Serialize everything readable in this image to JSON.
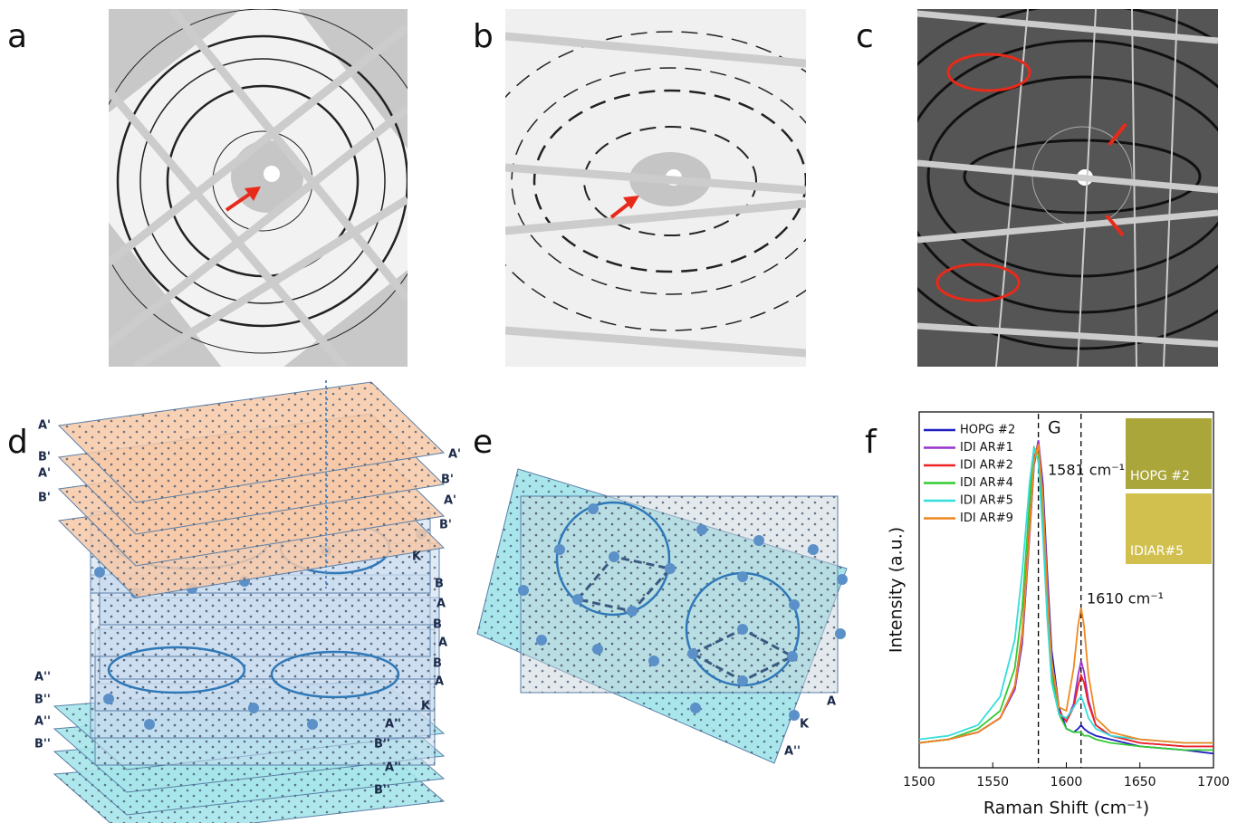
{
  "panel_labels": [
    "a",
    "b",
    "c",
    "d",
    "e",
    "f"
  ],
  "panel_d": {
    "left_labels": [
      "A'",
      "B'",
      "A'",
      "B'",
      "A''",
      "B''",
      "A''",
      "B''"
    ],
    "right_labels": [
      "A'",
      "B'",
      "A'",
      "B'",
      "K",
      "B",
      "A",
      "B",
      "A",
      "B",
      "A",
      "K",
      "A''",
      "B''",
      "A''",
      "B''"
    ]
  },
  "panel_e": {
    "labels": [
      "A",
      "K",
      "A''"
    ]
  },
  "chart_data": {
    "type": "line",
    "xlabel": "Raman Shift (cm⁻¹)",
    "ylabel": "Intensity (a.u.)",
    "xlim": [
      1500,
      1700
    ],
    "xticks": [
      1500,
      1550,
      1600,
      1650,
      1700
    ],
    "ylim": [
      0,
      100
    ],
    "x": [
      1500,
      1520,
      1540,
      1555,
      1565,
      1570,
      1575,
      1578,
      1581,
      1584,
      1587,
      1590,
      1595,
      1600,
      1605,
      1608,
      1610,
      1612,
      1615,
      1620,
      1630,
      1650,
      1680,
      1700
    ],
    "series": [
      {
        "name": "HOPG #2",
        "color": "#2020c0",
        "values": [
          7,
          8,
          10,
          14,
          22,
          35,
          65,
          85,
          92,
          80,
          55,
          33,
          17,
          11,
          10,
          11,
          12,
          11,
          10,
          9,
          8,
          6,
          5,
          4
        ]
      },
      {
        "name": "IDI AR#1",
        "color": "#9933cc",
        "values": [
          7,
          8,
          10,
          14,
          22,
          36,
          66,
          86,
          92,
          78,
          52,
          30,
          16,
          13,
          18,
          26,
          30,
          27,
          19,
          12,
          9,
          7,
          6,
          6
        ]
      },
      {
        "name": "IDI AR#2",
        "color": "#ee2222",
        "values": [
          7,
          8,
          10,
          14,
          23,
          38,
          68,
          87,
          91,
          76,
          50,
          29,
          16,
          13,
          17,
          23,
          26,
          24,
          18,
          12,
          9,
          7,
          6,
          6
        ]
      },
      {
        "name": "IDI AR#4",
        "color": "#33cc33",
        "values": [
          7,
          8,
          11,
          16,
          28,
          45,
          75,
          90,
          88,
          70,
          45,
          26,
          15,
          11,
          10,
          10,
          10,
          9,
          9,
          8,
          7,
          6,
          5,
          5
        ]
      },
      {
        "name": "IDI AR#5",
        "color": "#33dddd",
        "values": [
          8,
          9,
          12,
          20,
          36,
          55,
          80,
          90,
          86,
          66,
          42,
          24,
          15,
          14,
          17,
          19,
          20,
          18,
          14,
          11,
          9,
          8,
          7,
          7
        ]
      },
      {
        "name": "IDI AR#9",
        "color": "#ee8822",
        "values": [
          7,
          8,
          10,
          14,
          23,
          37,
          66,
          86,
          91,
          76,
          50,
          30,
          17,
          16,
          28,
          40,
          45,
          40,
          26,
          14,
          10,
          8,
          7,
          7
        ]
      }
    ],
    "markers": [
      {
        "x": 1581,
        "label": "1581 cm⁻¹",
        "peak": "G"
      },
      {
        "x": 1610,
        "label": "1610 cm⁻¹"
      }
    ],
    "insets": [
      "HOPG #2",
      "IDIAR#5"
    ]
  }
}
